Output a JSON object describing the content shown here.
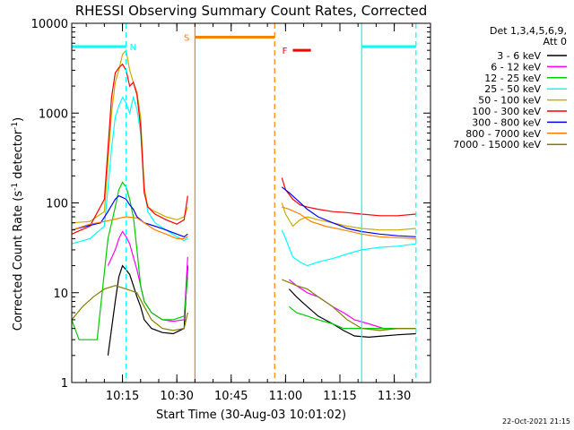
{
  "chart_data": {
    "type": "line",
    "title": "RHESSI Observing Summary Count Rates, Corrected",
    "xlabel": "Start Time (30-Aug-03 10:01:02)",
    "ylabel_main": "Corrected Count Rate (s",
    "ylabel_sup": "-1",
    "ylabel_mid": " detector",
    "ylabel_sup2": "-1",
    "ylabel_end": ")",
    "x_range_min": [
      0,
      99
    ],
    "y_scale": "log",
    "ylim": [
      1,
      10000
    ],
    "x_ticks": [
      {
        "label": "10:15",
        "value": 14
      },
      {
        "label": "10:30",
        "value": 29
      },
      {
        "label": "10:45",
        "value": 44
      },
      {
        "label": "11:00",
        "value": 59
      },
      {
        "label": "11:15",
        "value": 74
      },
      {
        "label": "11:30",
        "value": 89
      }
    ],
    "y_ticks": [
      {
        "label": "1",
        "value": 1
      },
      {
        "label": "10",
        "value": 10
      },
      {
        "label": "100",
        "value": 100
      },
      {
        "label": "1000",
        "value": 1000
      },
      {
        "label": "10000",
        "value": 10000
      }
    ],
    "legend_header": [
      "Det 1,3,4,5,6,9,",
      "Att 0"
    ],
    "series": [
      {
        "name": "3 - 6 keV",
        "color": "#000000",
        "points": [
          [
            10,
            2
          ],
          [
            12,
            8
          ],
          [
            13,
            15
          ],
          [
            14,
            20
          ],
          [
            15,
            18
          ],
          [
            16,
            16
          ],
          [
            17,
            12
          ],
          [
            18,
            9
          ],
          [
            19,
            7
          ],
          [
            20,
            5
          ],
          [
            22,
            4
          ],
          [
            25,
            3.6
          ],
          [
            28,
            3.5
          ],
          [
            31,
            4
          ],
          [
            32,
            20
          ],
          [
            57,
            null
          ],
          [
            60,
            11
          ],
          [
            62,
            9
          ],
          [
            65,
            7
          ],
          [
            68,
            5.5
          ],
          [
            72,
            4.5
          ],
          [
            75,
            3.8
          ],
          [
            78,
            3.3
          ],
          [
            82,
            3.2
          ],
          [
            86,
            3.3
          ],
          [
            90,
            3.4
          ],
          [
            95,
            3.5
          ]
        ]
      },
      {
        "name": "6 - 12 keV",
        "color": "#ff00ff",
        "points": [
          [
            10,
            20
          ],
          [
            12,
            30
          ],
          [
            13,
            40
          ],
          [
            14,
            48
          ],
          [
            15,
            42
          ],
          [
            16,
            35
          ],
          [
            17,
            25
          ],
          [
            18,
            18
          ],
          [
            19,
            12
          ],
          [
            20,
            8
          ],
          [
            22,
            6
          ],
          [
            25,
            5
          ],
          [
            28,
            4.8
          ],
          [
            31,
            5
          ],
          [
            32,
            25
          ],
          [
            57,
            null
          ],
          [
            60,
            14
          ],
          [
            62,
            12
          ],
          [
            65,
            10
          ],
          [
            68,
            9
          ],
          [
            72,
            7
          ],
          [
            75,
            6
          ],
          [
            78,
            5
          ],
          [
            82,
            4.5
          ],
          [
            86,
            4
          ],
          [
            90,
            4
          ],
          [
            95,
            4
          ]
        ]
      },
      {
        "name": "12 - 25 keV",
        "color": "#00cc00",
        "points": [
          [
            0,
            5
          ],
          [
            2,
            3
          ],
          [
            7,
            3
          ],
          [
            10,
            40
          ],
          [
            12,
            90
          ],
          [
            13,
            140
          ],
          [
            14,
            170
          ],
          [
            15,
            150
          ],
          [
            16,
            110
          ],
          [
            17,
            70
          ],
          [
            18,
            30
          ],
          [
            19,
            12
          ],
          [
            20,
            8
          ],
          [
            22,
            6
          ],
          [
            25,
            5
          ],
          [
            28,
            5
          ],
          [
            31,
            5.5
          ],
          [
            32,
            15
          ],
          [
            57,
            null
          ],
          [
            60,
            7
          ],
          [
            62,
            6
          ],
          [
            65,
            5.5
          ],
          [
            68,
            5
          ],
          [
            72,
            4.5
          ],
          [
            75,
            4
          ],
          [
            78,
            4
          ],
          [
            82,
            4
          ],
          [
            86,
            4
          ],
          [
            90,
            4
          ],
          [
            95,
            4
          ]
        ]
      },
      {
        "name": "25 - 50 keV",
        "color": "#00ffff",
        "points": [
          [
            0,
            35
          ],
          [
            5,
            40
          ],
          [
            9,
            55
          ],
          [
            11,
            400
          ],
          [
            12,
            900
          ],
          [
            13,
            1200
          ],
          [
            14,
            1500
          ],
          [
            15,
            1300
          ],
          [
            16,
            1000
          ],
          [
            17,
            1500
          ],
          [
            18,
            1100
          ],
          [
            19,
            600
          ],
          [
            20,
            150
          ],
          [
            21,
            80
          ],
          [
            23,
            60
          ],
          [
            26,
            50
          ],
          [
            29,
            42
          ],
          [
            31,
            38
          ],
          [
            32,
            40
          ],
          [
            57,
            null
          ],
          [
            58,
            50
          ],
          [
            59,
            40
          ],
          [
            61,
            25
          ],
          [
            63,
            22
          ],
          [
            65,
            20
          ],
          [
            68,
            22
          ],
          [
            72,
            24
          ],
          [
            76,
            27
          ],
          [
            80,
            30
          ],
          [
            85,
            32
          ],
          [
            90,
            33
          ],
          [
            95,
            35
          ]
        ]
      },
      {
        "name": "50 - 100 keV",
        "color": "#ccaa00",
        "points": [
          [
            0,
            60
          ],
          [
            5,
            62
          ],
          [
            9,
            80
          ],
          [
            11,
            1000
          ],
          [
            12,
            2200
          ],
          [
            13,
            3000
          ],
          [
            14,
            4500
          ],
          [
            15,
            5000
          ],
          [
            16,
            3000
          ],
          [
            17,
            2200
          ],
          [
            18,
            1700
          ],
          [
            19,
            900
          ],
          [
            20,
            150
          ],
          [
            21,
            90
          ],
          [
            23,
            80
          ],
          [
            26,
            70
          ],
          [
            29,
            65
          ],
          [
            31,
            70
          ],
          [
            32,
            90
          ],
          [
            57,
            null
          ],
          [
            58,
            100
          ],
          [
            59,
            75
          ],
          [
            61,
            55
          ],
          [
            63,
            65
          ],
          [
            65,
            70
          ],
          [
            68,
            65
          ],
          [
            72,
            60
          ],
          [
            76,
            55
          ],
          [
            80,
            52
          ],
          [
            85,
            50
          ],
          [
            90,
            50
          ],
          [
            95,
            52
          ]
        ]
      },
      {
        "name": "100 - 300 keV",
        "color": "#ff0000",
        "points": [
          [
            0,
            45
          ],
          [
            5,
            55
          ],
          [
            9,
            110
          ],
          [
            11,
            1500
          ],
          [
            12,
            2800
          ],
          [
            13,
            3200
          ],
          [
            14,
            3500
          ],
          [
            15,
            3000
          ],
          [
            16,
            2000
          ],
          [
            17,
            2200
          ],
          [
            18,
            1600
          ],
          [
            19,
            700
          ],
          [
            20,
            130
          ],
          [
            21,
            90
          ],
          [
            23,
            75
          ],
          [
            26,
            65
          ],
          [
            29,
            58
          ],
          [
            31,
            65
          ],
          [
            32,
            120
          ],
          [
            57,
            null
          ],
          [
            58,
            190
          ],
          [
            59,
            140
          ],
          [
            61,
            110
          ],
          [
            63,
            95
          ],
          [
            65,
            90
          ],
          [
            68,
            85
          ],
          [
            72,
            80
          ],
          [
            76,
            78
          ],
          [
            80,
            75
          ],
          [
            85,
            72
          ],
          [
            90,
            72
          ],
          [
            95,
            75
          ]
        ]
      },
      {
        "name": "300 - 800 keV",
        "color": "#0000ff",
        "points": [
          [
            0,
            50
          ],
          [
            4,
            55
          ],
          [
            8,
            60
          ],
          [
            10,
            80
          ],
          [
            12,
            110
          ],
          [
            13,
            120
          ],
          [
            14,
            115
          ],
          [
            15,
            110
          ],
          [
            16,
            95
          ],
          [
            17,
            85
          ],
          [
            18,
            70
          ],
          [
            20,
            60
          ],
          [
            23,
            55
          ],
          [
            26,
            50
          ],
          [
            29,
            45
          ],
          [
            31,
            42
          ],
          [
            32,
            45
          ],
          [
            57,
            null
          ],
          [
            58,
            150
          ],
          [
            60,
            130
          ],
          [
            62,
            110
          ],
          [
            65,
            85
          ],
          [
            68,
            70
          ],
          [
            72,
            60
          ],
          [
            76,
            52
          ],
          [
            80,
            48
          ],
          [
            85,
            45
          ],
          [
            90,
            43
          ],
          [
            95,
            42
          ]
        ]
      },
      {
        "name": "800 - 7000 keV",
        "color": "#ff8000",
        "points": [
          [
            0,
            50
          ],
          [
            5,
            58
          ],
          [
            9,
            62
          ],
          [
            12,
            66
          ],
          [
            15,
            70
          ],
          [
            18,
            68
          ],
          [
            20,
            60
          ],
          [
            23,
            50
          ],
          [
            26,
            45
          ],
          [
            29,
            40
          ],
          [
            31,
            40
          ],
          [
            32,
            42
          ],
          [
            57,
            null
          ],
          [
            58,
            90
          ],
          [
            60,
            85
          ],
          [
            63,
            75
          ],
          [
            66,
            62
          ],
          [
            70,
            55
          ],
          [
            75,
            50
          ],
          [
            80,
            45
          ],
          [
            85,
            42
          ],
          [
            90,
            41
          ],
          [
            95,
            40
          ]
        ]
      },
      {
        "name": "7000 - 15000 keV",
        "color": "#808000",
        "points": [
          [
            0,
            5
          ],
          [
            3,
            7
          ],
          [
            6,
            9
          ],
          [
            9,
            11
          ],
          [
            12,
            12
          ],
          [
            15,
            11
          ],
          [
            18,
            10
          ],
          [
            20,
            7
          ],
          [
            22,
            5
          ],
          [
            25,
            4
          ],
          [
            28,
            3.8
          ],
          [
            31,
            4
          ],
          [
            32,
            6
          ],
          [
            57,
            null
          ],
          [
            58,
            14
          ],
          [
            60,
            13
          ],
          [
            62,
            12
          ],
          [
            65,
            11
          ],
          [
            68,
            9
          ],
          [
            72,
            7
          ],
          [
            76,
            5
          ],
          [
            80,
            4
          ],
          [
            85,
            3.8
          ],
          [
            90,
            4
          ],
          [
            95,
            4
          ]
        ]
      }
    ],
    "annotations": [
      {
        "label": "N",
        "color": "#00ffff"
      },
      {
        "label": "S",
        "color": "#ff8000"
      },
      {
        "label": "F",
        "color": "#ff0000"
      }
    ],
    "night_flag": {
      "color": "#00ffff",
      "value": 5500,
      "ranges": [
        [
          0,
          15
        ],
        [
          80,
          95
        ]
      ]
    },
    "saa_flag": {
      "color": "#ff8000",
      "value": 7000,
      "range": [
        34,
        56
      ]
    },
    "flare_flag": {
      "color": "#ff0000",
      "value": 5000,
      "range": [
        61,
        66
      ]
    },
    "vlines_solid": [
      {
        "x": 34,
        "color": "#ff8000"
      },
      {
        "x": 80,
        "color": "#00ffff"
      }
    ],
    "vlines_dashed": [
      {
        "x": 15,
        "color": "#00ffff"
      },
      {
        "x": 56,
        "color": "#ff8000"
      },
      {
        "x": 95,
        "color": "#00ffff"
      }
    ],
    "grid": false,
    "legend_position": "right"
  },
  "footer_date": "22-Oct-2021 21:15"
}
